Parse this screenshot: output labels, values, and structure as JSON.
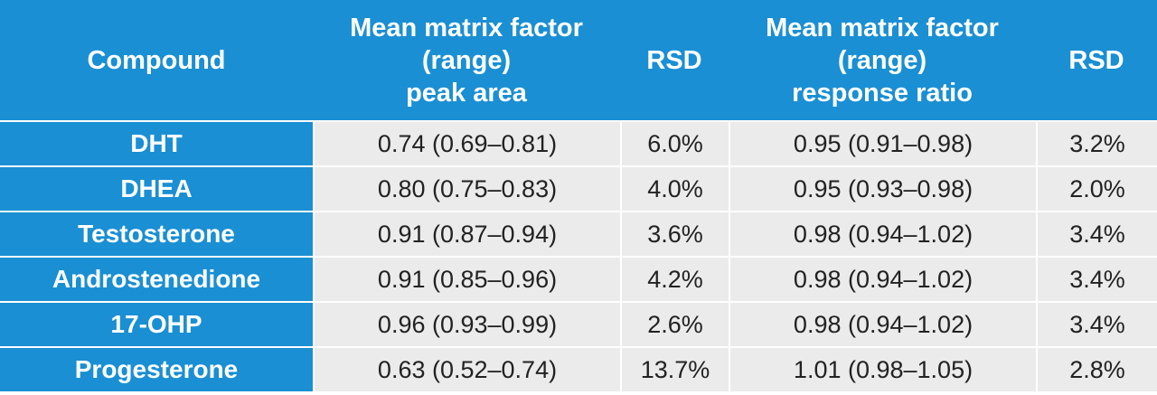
{
  "header": {
    "compound": "Compound",
    "mmf_peak_area": [
      "Mean matrix factor",
      "(range)",
      "peak area"
    ],
    "rsd_1": "RSD",
    "mmf_response_ratio": [
      "Mean matrix factor",
      "(range)",
      "response ratio"
    ],
    "rsd_2": "RSD"
  },
  "rows": [
    {
      "compound": "DHT",
      "mmf_peak_area": "0.74 (0.69–0.81)",
      "rsd_1": "6.0%",
      "mmf_response_ratio": "0.95 (0.91–0.98)",
      "rsd_2": "3.2%"
    },
    {
      "compound": "DHEA",
      "mmf_peak_area": "0.80 (0.75–0.83)",
      "rsd_1": "4.0%",
      "mmf_response_ratio": "0.95 (0.93–0.98)",
      "rsd_2": "2.0%"
    },
    {
      "compound": "Testosterone",
      "mmf_peak_area": "0.91 (0.87–0.94)",
      "rsd_1": "3.6%",
      "mmf_response_ratio": "0.98 (0.94–1.02)",
      "rsd_2": "3.4%"
    },
    {
      "compound": "Androstenedione",
      "mmf_peak_area": "0.91 (0.85–0.96)",
      "rsd_1": "4.2%",
      "mmf_response_ratio": "0.98 (0.94–1.02)",
      "rsd_2": "3.4%"
    },
    {
      "compound": "17-OHP",
      "mmf_peak_area": "0.96 (0.93–0.99)",
      "rsd_1": "2.6%",
      "mmf_response_ratio": "0.98 (0.94–1.02)",
      "rsd_2": "3.4%"
    },
    {
      "compound": "Progesterone",
      "mmf_peak_area": "0.63 (0.52–0.74)",
      "rsd_1": "13.7%",
      "mmf_response_ratio": "1.01 (0.98–1.05)",
      "rsd_2": "2.8%"
    }
  ],
  "colors": {
    "header_blue": "#1a8fd3",
    "cell_gray": "#ebebeb"
  }
}
